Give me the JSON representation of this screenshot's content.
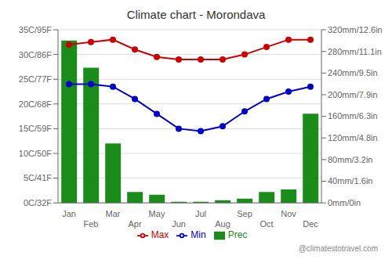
{
  "chart_data": {
    "type": "bar",
    "title": "Climate chart - Morondava",
    "annotations": [
      "@climatestotravel.com"
    ],
    "categories": [
      "Jan",
      "Feb",
      "Mar",
      "Apr",
      "May",
      "Jun",
      "Jul",
      "Aug",
      "Sep",
      "Oct",
      "Nov",
      "Dec"
    ],
    "series": [
      {
        "name": "Prec",
        "type": "bar",
        "axis": "y2",
        "color": "#1a8c1a",
        "values": [
          300,
          250,
          110,
          20,
          15,
          2,
          2,
          5,
          8,
          20,
          25,
          165
        ]
      },
      {
        "name": "Min",
        "type": "line",
        "color": "#0000cc",
        "marker": "circle",
        "values": [
          24,
          24,
          23.5,
          21,
          18,
          15,
          14.5,
          15.5,
          18.5,
          21,
          22.5,
          23.5
        ]
      },
      {
        "name": "Max",
        "type": "line",
        "color": "#cc0000",
        "marker": "circle",
        "values": [
          32,
          32.5,
          33,
          31,
          29.5,
          29,
          29,
          29,
          30,
          31.5,
          33,
          33
        ]
      }
    ],
    "ylim": [
      0,
      35
    ],
    "yticks": [
      {
        "value": 0,
        "label": "0C/32F"
      },
      {
        "value": 5,
        "label": "5C/41F"
      },
      {
        "value": 10,
        "label": "10C/50F"
      },
      {
        "value": 15,
        "label": "15C/59F"
      },
      {
        "value": 20,
        "label": "20C/68F"
      },
      {
        "value": 25,
        "label": "25C/77F"
      },
      {
        "value": 30,
        "label": "30C/86F"
      },
      {
        "value": 35,
        "label": "35C/95F"
      }
    ],
    "y2lim": [
      0,
      320
    ],
    "y2ticks": [
      {
        "value": 0,
        "label": "0mm/0in"
      },
      {
        "value": 40,
        "label": "40mm/1.6in"
      },
      {
        "value": 80,
        "label": "80mm/3.2in"
      },
      {
        "value": 120,
        "label": "120mm/4.8in"
      },
      {
        "value": 160,
        "label": "160mm/6.3in"
      },
      {
        "value": 200,
        "label": "200mm/7.9in"
      },
      {
        "value": 240,
        "label": "240mm/9.5in"
      },
      {
        "value": 280,
        "label": "280mm/11.1in"
      },
      {
        "value": 320,
        "label": "320mm/12.6in"
      }
    ],
    "grid": true,
    "legend": "bottom"
  }
}
